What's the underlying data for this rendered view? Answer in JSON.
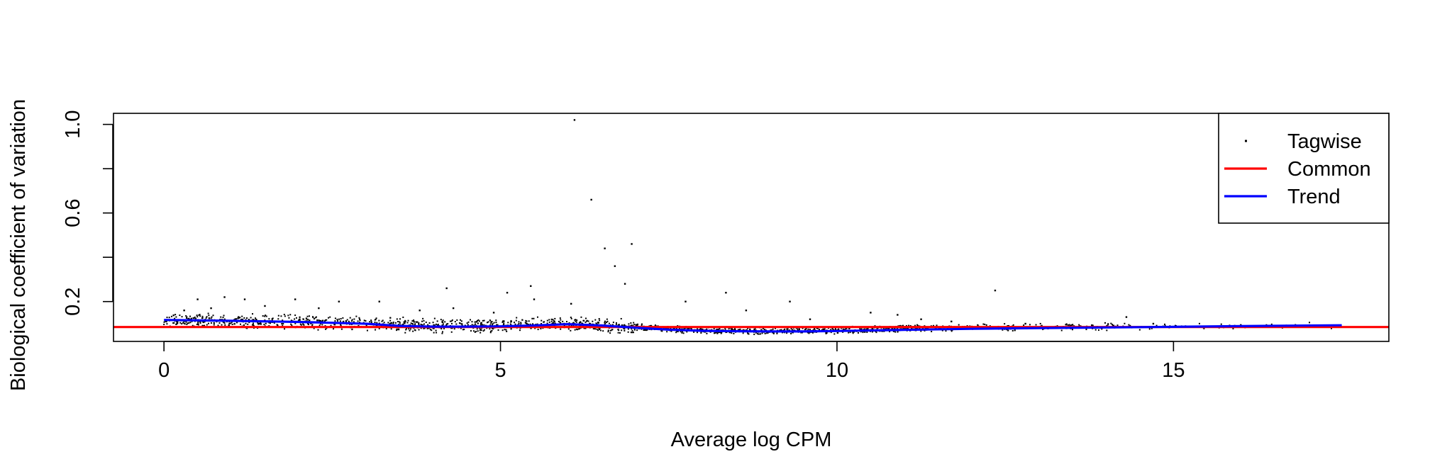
{
  "chart_data": {
    "type": "scatter",
    "title": "",
    "xlabel": "Average log CPM",
    "ylabel": "Biological coefficient of variation",
    "xlim": [
      -0.75,
      18.2
    ],
    "ylim": [
      0.02,
      1.05
    ],
    "x_ticks": [
      0,
      5,
      10,
      15
    ],
    "x_tick_labels": [
      "0",
      "5",
      "10",
      "15"
    ],
    "y_ticks": [
      0.2,
      0.4,
      0.6,
      0.8,
      1.0
    ],
    "y_tick_labels": [
      "0.2",
      "0.6",
      "1.0"
    ],
    "grid": false,
    "legend": {
      "placement": "top-right",
      "entries": [
        {
          "label": "Tagwise",
          "symbol": "point",
          "color": "#000000"
        },
        {
          "label": "Common",
          "symbol": "line",
          "color": "#ff0000"
        },
        {
          "label": "Trend",
          "symbol": "line",
          "color": "#0000ff"
        }
      ]
    },
    "series": [
      {
        "name": "Tagwise",
        "kind": "points",
        "color": "#000000",
        "dense_band": [
          {
            "x": 0.0,
            "y": 0.117
          },
          {
            "x": 1.0,
            "y": 0.112
          },
          {
            "x": 2.0,
            "y": 0.108
          },
          {
            "x": 3.0,
            "y": 0.1
          },
          {
            "x": 4.0,
            "y": 0.09
          },
          {
            "x": 5.0,
            "y": 0.093
          },
          {
            "x": 6.0,
            "y": 0.1
          },
          {
            "x": 7.0,
            "y": 0.085
          },
          {
            "x": 8.0,
            "y": 0.07
          },
          {
            "x": 9.0,
            "y": 0.066
          },
          {
            "x": 10.0,
            "y": 0.07
          },
          {
            "x": 11.0,
            "y": 0.078
          },
          {
            "x": 12.0,
            "y": 0.083
          },
          {
            "x": 13.0,
            "y": 0.085
          },
          {
            "x": 14.0,
            "y": 0.087
          },
          {
            "x": 15.0,
            "y": 0.089
          },
          {
            "x": 17.5,
            "y": 0.092
          }
        ],
        "points": [
          {
            "x": 6.1,
            "y": 1.02
          },
          {
            "x": 6.35,
            "y": 0.66
          },
          {
            "x": 6.95,
            "y": 0.46
          },
          {
            "x": 6.55,
            "y": 0.44
          },
          {
            "x": 6.7,
            "y": 0.36
          },
          {
            "x": 6.85,
            "y": 0.28
          },
          {
            "x": 5.45,
            "y": 0.27
          },
          {
            "x": 4.2,
            "y": 0.26
          },
          {
            "x": 5.1,
            "y": 0.24
          },
          {
            "x": 12.35,
            "y": 0.25
          },
          {
            "x": 8.35,
            "y": 0.24
          },
          {
            "x": 0.9,
            "y": 0.22
          },
          {
            "x": 0.5,
            "y": 0.21
          },
          {
            "x": 1.2,
            "y": 0.21
          },
          {
            "x": 1.95,
            "y": 0.21
          },
          {
            "x": 2.6,
            "y": 0.2
          },
          {
            "x": 3.2,
            "y": 0.2
          },
          {
            "x": 5.5,
            "y": 0.21
          },
          {
            "x": 7.75,
            "y": 0.2
          },
          {
            "x": 9.3,
            "y": 0.2
          },
          {
            "x": 6.05,
            "y": 0.19
          },
          {
            "x": 8.65,
            "y": 0.16
          },
          {
            "x": 10.5,
            "y": 0.15
          },
          {
            "x": 10.9,
            "y": 0.14
          },
          {
            "x": 14.3,
            "y": 0.13
          },
          {
            "x": 11.25,
            "y": 0.12
          },
          {
            "x": 9.6,
            "y": 0.12
          },
          {
            "x": 0.3,
            "y": 0.16
          },
          {
            "x": 0.7,
            "y": 0.17
          },
          {
            "x": 1.5,
            "y": 0.18
          },
          {
            "x": 2.3,
            "y": 0.17
          },
          {
            "x": 3.8,
            "y": 0.16
          },
          {
            "x": 4.3,
            "y": 0.17
          },
          {
            "x": 4.9,
            "y": 0.15
          },
          {
            "x": 11.7,
            "y": 0.11
          },
          {
            "x": 12.8,
            "y": 0.1
          },
          {
            "x": 13.5,
            "y": 0.095
          },
          {
            "x": 14.7,
            "y": 0.1
          },
          {
            "x": 16.0,
            "y": 0.094
          }
        ]
      },
      {
        "name": "Common",
        "kind": "line",
        "color": "#ff0000",
        "x": [
          -0.75,
          18.2
        ],
        "y": [
          0.085,
          0.085
        ]
      },
      {
        "name": "Trend",
        "kind": "line",
        "color": "#0000ff",
        "x": [
          0.0,
          1.0,
          2.0,
          3.0,
          3.5,
          4.0,
          4.5,
          5.0,
          5.5,
          6.0,
          6.5,
          7.0,
          7.5,
          8.0,
          8.5,
          9.0,
          9.5,
          10.0,
          11.0,
          12.0,
          13.0,
          14.0,
          15.0,
          16.0,
          17.5
        ],
        "y": [
          0.117,
          0.113,
          0.108,
          0.1,
          0.09,
          0.087,
          0.087,
          0.088,
          0.092,
          0.098,
          0.092,
          0.082,
          0.073,
          0.068,
          0.066,
          0.065,
          0.065,
          0.067,
          0.072,
          0.077,
          0.08,
          0.083,
          0.086,
          0.089,
          0.093
        ]
      }
    ]
  }
}
